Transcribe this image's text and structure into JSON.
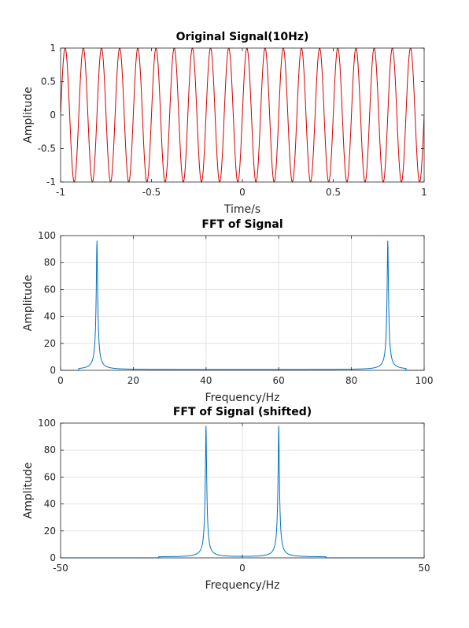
{
  "chart_data": [
    {
      "type": "line",
      "title": "Original Signal(10Hz)",
      "xlabel": "Time/s",
      "ylabel": "Amplitude",
      "xlim": [
        -1,
        1
      ],
      "ylim": [
        -1,
        1
      ],
      "xticks": [
        "-1",
        "-0.5",
        "0",
        "0.5",
        "1"
      ],
      "yticks": [
        "-1",
        "-0.5",
        "0",
        "0.5",
        "1"
      ],
      "grid": false,
      "series": [
        {
          "function": "sin",
          "frequency": 10,
          "amplitude": 1,
          "x_range": [
            -1,
            1
          ],
          "color": "#d40000"
        }
      ]
    },
    {
      "type": "line",
      "title": "FFT of Signal",
      "xlabel": "Frequency/Hz",
      "ylabel": "Amplitude",
      "xlim": [
        0,
        100
      ],
      "ylim": [
        0,
        100
      ],
      "xticks": [
        "0",
        "20",
        "40",
        "60",
        "80",
        "100"
      ],
      "yticks": [
        "0",
        "20",
        "40",
        "60",
        "80",
        "100"
      ],
      "grid": true,
      "series": [
        {
          "peaks": [
            10,
            90
          ],
          "peak_value": 98,
          "baseline": 0.6,
          "nonzero_x_range": [
            5,
            95
          ],
          "color": "#0072bd"
        }
      ]
    },
    {
      "type": "line",
      "title": "FFT of Signal (shifted)",
      "xlabel": "Frequency/Hz",
      "ylabel": "Amplitude",
      "xlim": [
        -50,
        50
      ],
      "ylim": [
        0,
        100
      ],
      "xticks": [
        "-50",
        "0",
        "50"
      ],
      "yticks": [
        "0",
        "20",
        "40",
        "60",
        "80",
        "100"
      ],
      "grid": true,
      "series": [
        {
          "peaks": [
            -10,
            10
          ],
          "peak_value": 98,
          "baseline": 0.6,
          "nonzero_x_range": [
            -23,
            23
          ],
          "color": "#0072bd"
        }
      ]
    }
  ]
}
